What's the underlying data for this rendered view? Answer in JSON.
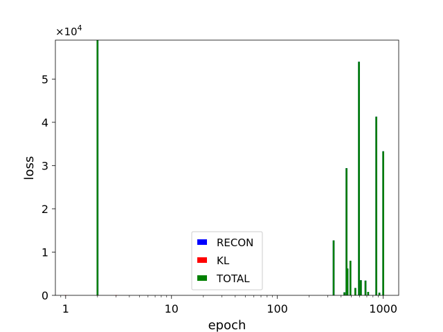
{
  "chart_data": {
    "type": "bar",
    "xlabel": "epoch",
    "ylabel": "loss",
    "x_scale": "log",
    "xlim": [
      0.8,
      1400
    ],
    "ylim": [
      0,
      59000
    ],
    "y_offset_text": "×10",
    "y_offset_exponent": "4",
    "x_ticks": [
      {
        "value": 1,
        "label": "1"
      },
      {
        "value": 10,
        "label": "10"
      },
      {
        "value": 100,
        "label": "100"
      },
      {
        "value": 1000,
        "label": "1000"
      }
    ],
    "y_ticks": [
      {
        "value": 0,
        "label": "0"
      },
      {
        "value": 10000,
        "label": "1"
      },
      {
        "value": 20000,
        "label": "2"
      },
      {
        "value": 30000,
        "label": "3"
      },
      {
        "value": 40000,
        "label": "4"
      },
      {
        "value": 50000,
        "label": "5"
      }
    ],
    "grid": false,
    "legend_position": "lower-center",
    "series": [
      {
        "name": "RECON",
        "color": "#0000ff",
        "points": [
          {
            "x": 2,
            "y": 59000
          },
          {
            "x": 340,
            "y": 12700
          },
          {
            "x": 430,
            "y": 700
          },
          {
            "x": 450,
            "y": 29400
          },
          {
            "x": 460,
            "y": 6200
          },
          {
            "x": 490,
            "y": 8000
          },
          {
            "x": 545,
            "y": 1700
          },
          {
            "x": 590,
            "y": 54000
          },
          {
            "x": 615,
            "y": 3500
          },
          {
            "x": 680,
            "y": 3400
          },
          {
            "x": 720,
            "y": 800
          },
          {
            "x": 860,
            "y": 41300
          },
          {
            "x": 920,
            "y": 600
          },
          {
            "x": 1000,
            "y": 33300
          }
        ]
      },
      {
        "name": "KL",
        "color": "#ff0000",
        "points": [
          {
            "x": 1,
            "y": 60
          },
          {
            "x": 2,
            "y": 80
          },
          {
            "x": 3,
            "y": 60
          }
        ]
      },
      {
        "name": "TOTAL",
        "color": "#008000",
        "points": [
          {
            "x": 2,
            "y": 59000
          },
          {
            "x": 340,
            "y": 12700
          },
          {
            "x": 430,
            "y": 700
          },
          {
            "x": 450,
            "y": 29400
          },
          {
            "x": 460,
            "y": 6200
          },
          {
            "x": 490,
            "y": 8000
          },
          {
            "x": 545,
            "y": 1700
          },
          {
            "x": 590,
            "y": 54000
          },
          {
            "x": 615,
            "y": 3500
          },
          {
            "x": 680,
            "y": 3400
          },
          {
            "x": 720,
            "y": 800
          },
          {
            "x": 860,
            "y": 41300
          },
          {
            "x": 920,
            "y": 600
          },
          {
            "x": 1000,
            "y": 33300
          }
        ]
      }
    ]
  }
}
